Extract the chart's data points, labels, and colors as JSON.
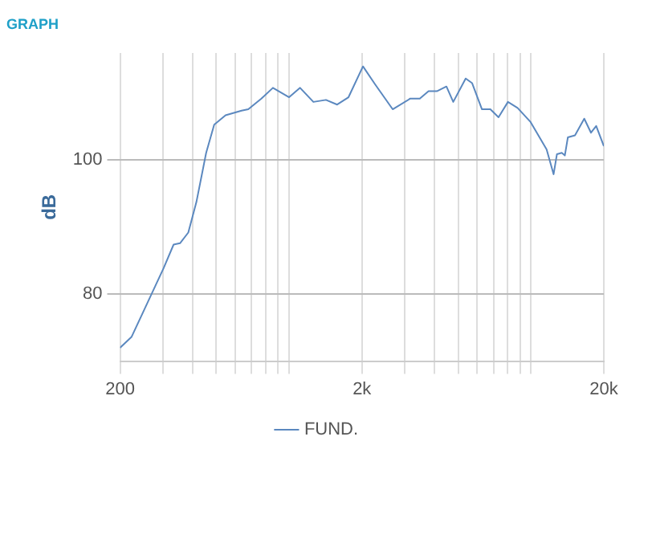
{
  "chart_data": {
    "type": "line",
    "title": "GRAPH",
    "ylabel": "dB",
    "x": [
      200,
      223,
      252,
      303,
      333,
      354,
      383,
      414,
      454,
      490,
      546,
      636,
      678,
      768,
      857,
      1000,
      1110,
      1260,
      1420,
      1580,
      1760,
      2020,
      2270,
      2680,
      3170,
      3470,
      3770,
      4080,
      4470,
      4770,
      5370,
      5710,
      6270,
      6790,
      7340,
      8030,
      8800,
      9960,
      11600,
      12400,
      12800,
      13400,
      13800,
      14200,
      15200,
      16600,
      17700,
      18600,
      20000
    ],
    "series": [
      {
        "name": "FUND.",
        "color": "#5b88bf",
        "values": [
          72,
          73.6,
          77.7,
          83.9,
          87.4,
          87.6,
          89.2,
          93.8,
          101.1,
          105.3,
          106.7,
          107.4,
          107.6,
          109.2,
          110.8,
          109.4,
          110.8,
          108.7,
          109,
          108.3,
          109.4,
          114,
          111.3,
          107.6,
          109.2,
          109.2,
          110.3,
          110.3,
          111,
          108.7,
          112.2,
          111.5,
          107.6,
          107.6,
          106.4,
          108.7,
          107.8,
          105.7,
          101.6,
          97.9,
          100.9,
          101.1,
          100.7,
          103.4,
          103.7,
          106.2,
          104.1,
          105.1,
          102.1
        ]
      }
    ],
    "log": "x",
    "xlim": [
      200,
      20000
    ],
    "xticks": [
      200,
      {
        "value": 300,
        "label": null
      },
      {
        "value": 400,
        "label": null
      },
      {
        "value": 500,
        "label": null
      },
      {
        "value": 600,
        "label": null
      },
      {
        "value": 700,
        "label": null
      },
      {
        "value": 800,
        "label": null
      },
      {
        "value": 900,
        "label": null
      },
      {
        "value": 1000,
        "label": null
      },
      {
        "value": 2000,
        "label": "2k"
      },
      {
        "value": 3000,
        "label": null
      },
      {
        "value": 4000,
        "label": null
      },
      {
        "value": 5000,
        "label": null
      },
      {
        "value": 6000,
        "label": null
      },
      {
        "value": 7000,
        "label": null
      },
      {
        "value": 8000,
        "label": null
      },
      {
        "value": 9000,
        "label": null
      },
      {
        "value": 10000,
        "label": null
      },
      {
        "value": 20000,
        "label": "20k"
      }
    ],
    "ylim": [
      70,
      116
    ],
    "yticks": [
      80,
      100
    ],
    "grid": true,
    "legend": "bottom",
    "marker": "none",
    "line_style": "solid"
  }
}
